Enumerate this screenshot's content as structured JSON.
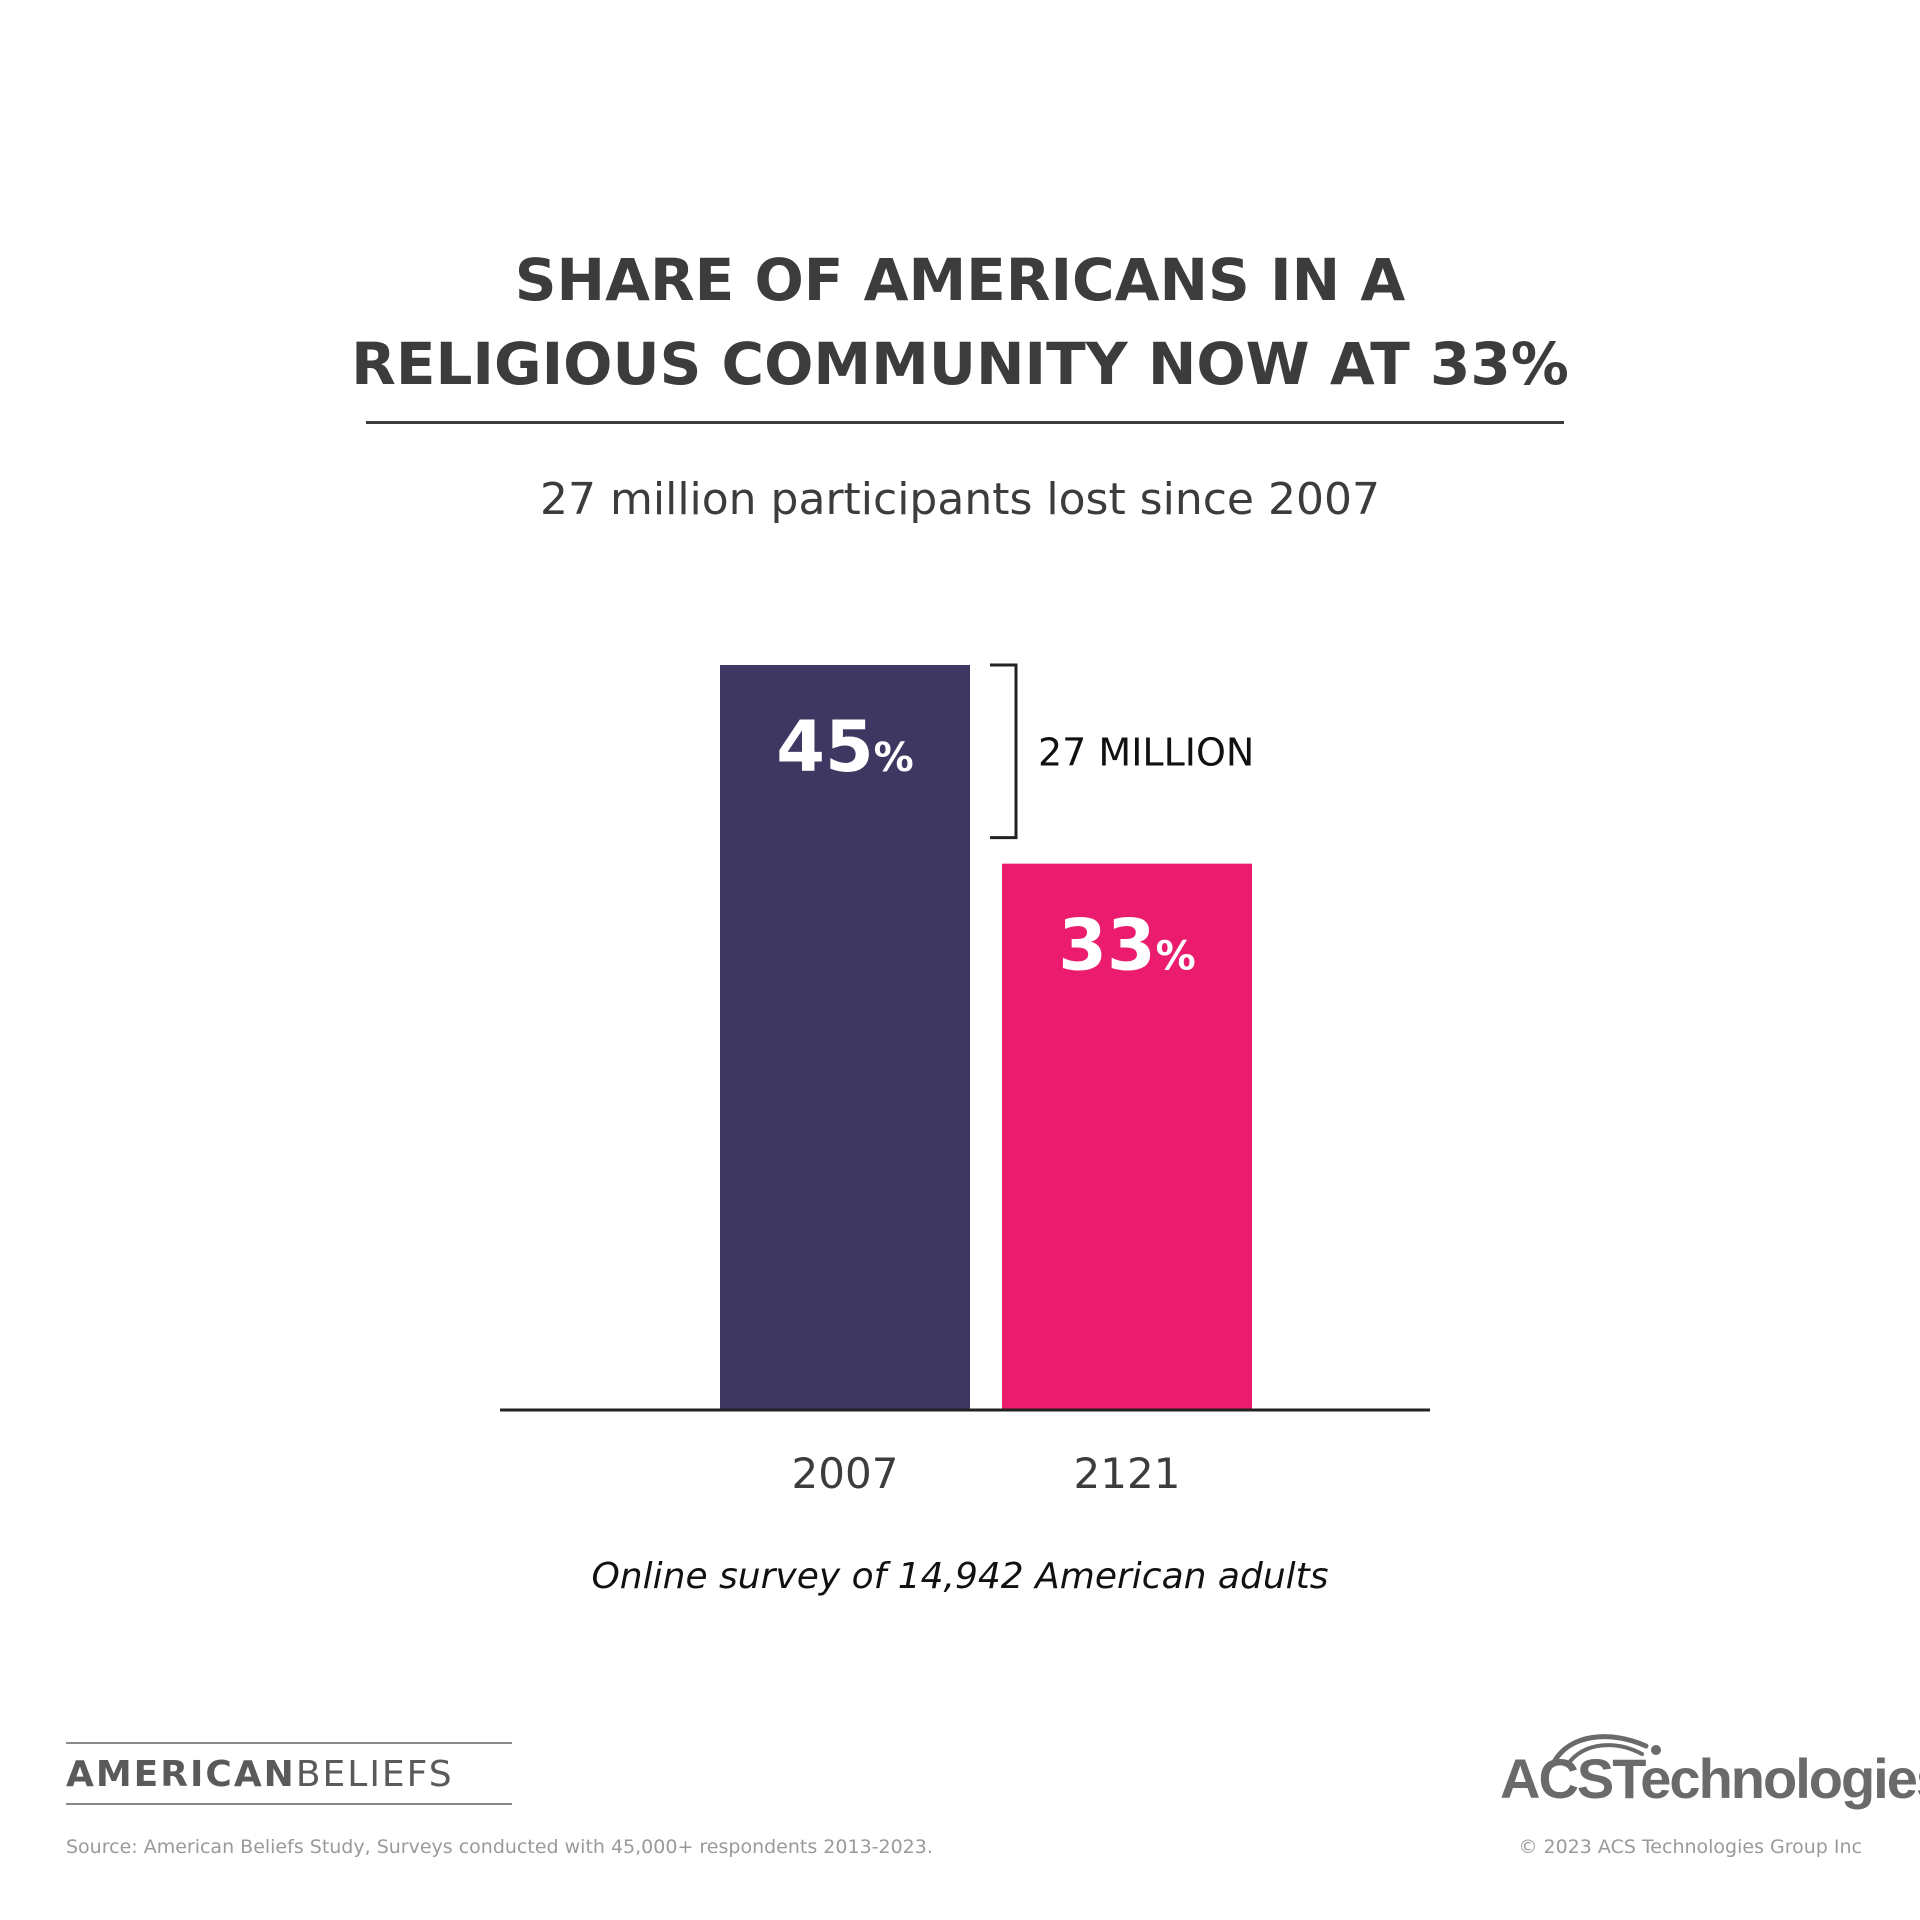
{
  "header": {
    "title_line1": "SHARE OF AMERICANS IN A",
    "title_line2": "RELIGIOUS COMMUNITY NOW AT 33%",
    "subtitle": "27 million participants lost since 2007"
  },
  "chart_data": {
    "type": "bar",
    "title": "SHARE OF AMERICANS IN A RELIGIOUS COMMUNITY NOW AT 33%",
    "subtitle": "27 million participants lost since 2007",
    "categories": [
      "2007",
      "2121"
    ],
    "values": [
      45,
      33
    ],
    "value_labels": [
      "45",
      "33"
    ],
    "value_suffix": "%",
    "colors": [
      "#3d3762",
      "#eb1c6e"
    ],
    "annotation": "27 MILLION",
    "xlabel": "",
    "ylabel": "",
    "ylim": [
      0,
      45
    ],
    "grid": false,
    "legend": "none"
  },
  "note": "Online survey of 14,942 American adults",
  "footer": {
    "brand_left_bold": "AMERICAN",
    "brand_left_light": "BELIEFS",
    "brand_right": "ACSTechnologies",
    "source": "Source: American Beliefs Study, Surveys conducted with 45,000+ respondents 2013-2023.",
    "copyright": "© 2023 ACS Technologies Group Inc"
  }
}
